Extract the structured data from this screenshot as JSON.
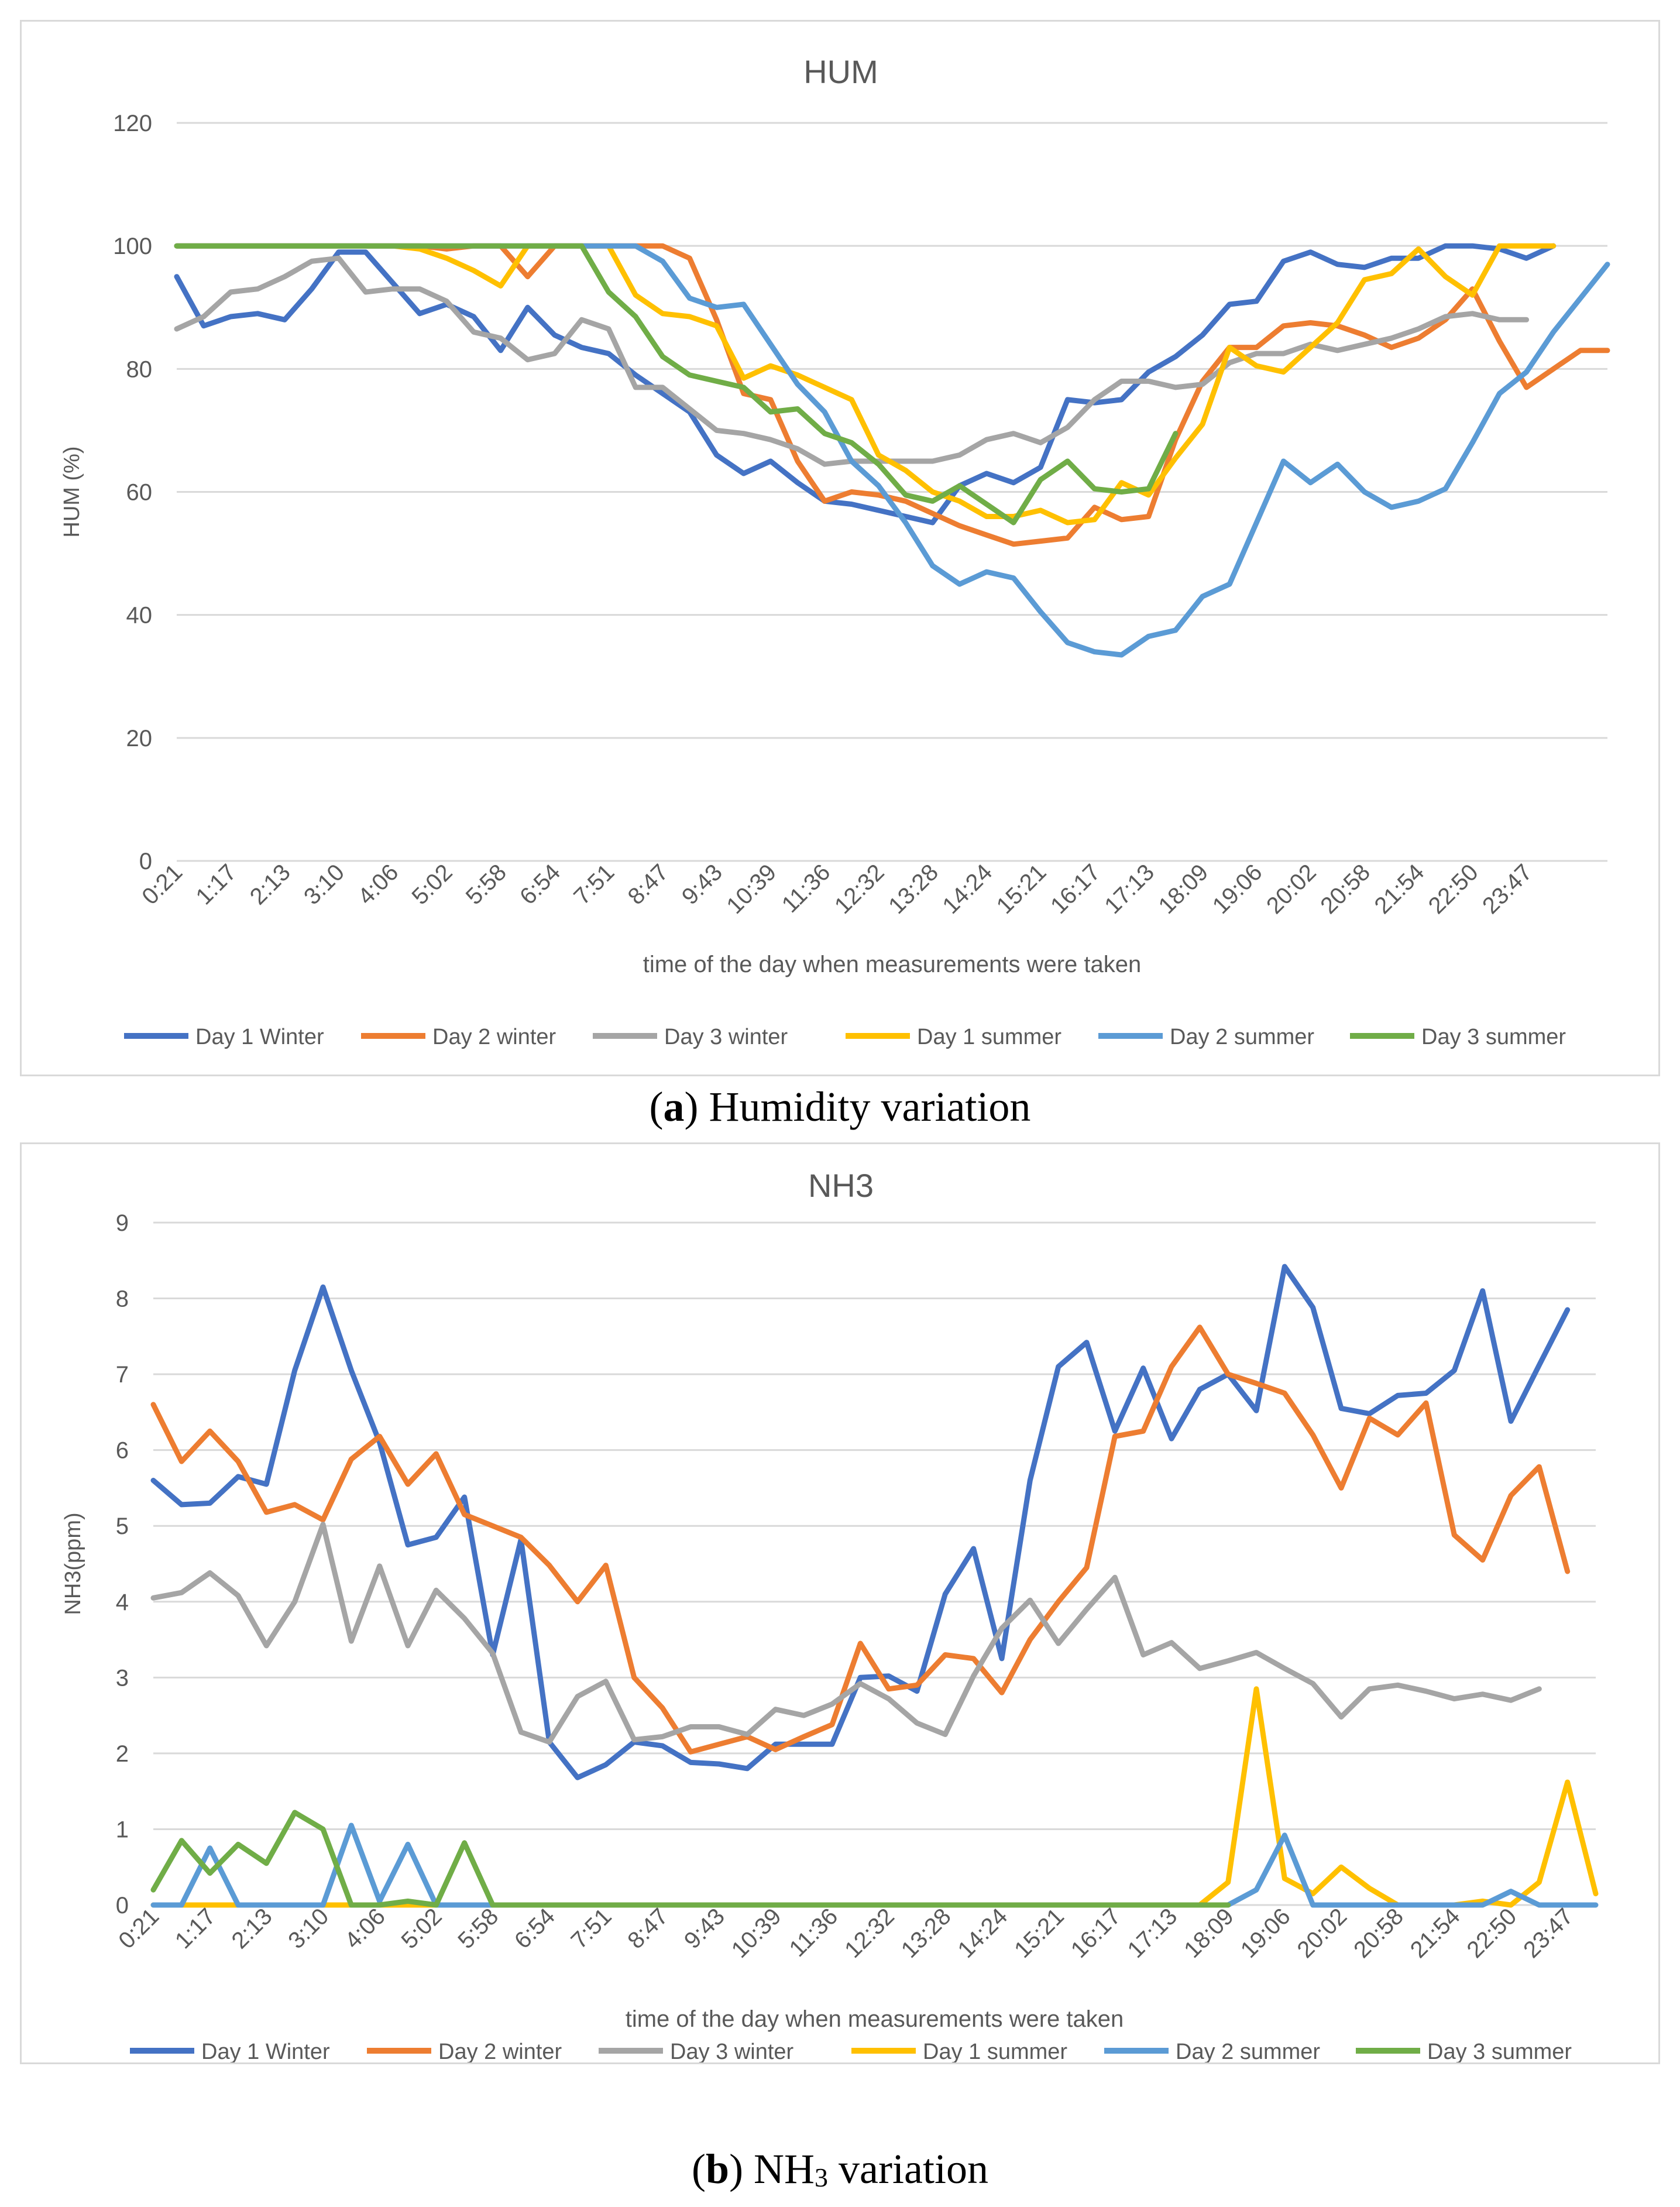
{
  "chart_data": [
    {
      "type": "line",
      "title": "HUM",
      "xlabel": "time of the day when measurements were taken",
      "ylabel": "HUM (%)",
      "ylim": [
        0,
        120
      ],
      "yticks": [
        0,
        20,
        40,
        60,
        80,
        100,
        120
      ],
      "grid": true,
      "legend_position": "bottom",
      "x_tick_labels": [
        "0:21",
        "1:17",
        "2:13",
        "3:10",
        "4:06",
        "5:02",
        "5:58",
        "6:54",
        "7:51",
        "8:47",
        "9:43",
        "10:39",
        "11:36",
        "12:32",
        "13:28",
        "14:24",
        "15:21",
        "16:17",
        "17:13",
        "18:09",
        "19:06",
        "20:02",
        "20:58",
        "21:54",
        "22:50",
        "23:47"
      ],
      "series": [
        {
          "name": "Day 1 Winter",
          "color": "#4472c4",
          "values": [
            95,
            87,
            88.5,
            89,
            88,
            93,
            99,
            99,
            94,
            89,
            90.5,
            88.5,
            83,
            90,
            85.5,
            83.5,
            82.5,
            79,
            76,
            73,
            66,
            63,
            65,
            61.5,
            58.5,
            58,
            57,
            56,
            55,
            61,
            63,
            61.5,
            64,
            75,
            74.5,
            75,
            79.5,
            82,
            85.5,
            90.5,
            91,
            97.5,
            99,
            97,
            96.5,
            98,
            98,
            100,
            100,
            99.5,
            98,
            100,
            null
          ]
        },
        {
          "name": "Day 2 winter",
          "color": "#ed7d31",
          "values": [
            100,
            100,
            100,
            100,
            100,
            100,
            100,
            100,
            100,
            100,
            99.5,
            100,
            100,
            95,
            100,
            100,
            100,
            100,
            100,
            98,
            88,
            76,
            75,
            65,
            58.5,
            60,
            59.5,
            58.5,
            56.5,
            54.5,
            53,
            51.5,
            52,
            52.5,
            57.5,
            55.5,
            56,
            68.5,
            78,
            83.5,
            83.5,
            87,
            87.5,
            87,
            85.5,
            83.5,
            85,
            88,
            93,
            84.5,
            77,
            80,
            83,
            83
          ]
        },
        {
          "name": "Day 3 winter",
          "color": "#a5a5a5",
          "values": [
            86.5,
            88.5,
            92.5,
            93,
            95,
            97.5,
            98,
            92.5,
            93,
            93,
            91,
            86,
            85,
            81.5,
            82.5,
            88,
            86.5,
            77,
            77,
            73.5,
            70,
            69.5,
            68.5,
            67,
            64.5,
            65,
            65,
            65,
            65,
            66,
            68.5,
            69.5,
            68,
            70.5,
            75,
            78,
            78,
            77,
            77.5,
            81,
            82.5,
            82.5,
            84,
            83,
            84,
            85,
            86.5,
            88.5,
            89,
            88,
            88,
            null
          ]
        },
        {
          "name": "Day 1 summer",
          "color": "#ffc000",
          "values": [
            100,
            100,
            100,
            100,
            100,
            100,
            100,
            100,
            100,
            99.5,
            98,
            96,
            93.5,
            100,
            100,
            100,
            100,
            92,
            89,
            88.5,
            87,
            78.5,
            80.5,
            79,
            77,
            75,
            66,
            63.5,
            60,
            58.5,
            56,
            56,
            57,
            55,
            55.5,
            61.5,
            59.5,
            65.5,
            71,
            83.5,
            80.5,
            79.5,
            83.5,
            87.5,
            94.5,
            95.5,
            99.5,
            95,
            92,
            100,
            100,
            100
          ]
        },
        {
          "name": "Day 2 summer",
          "color": "#5b9bd5",
          "values": [
            100,
            100,
            100,
            100,
            100,
            100,
            100,
            100,
            100,
            100,
            100,
            100,
            100,
            100,
            100,
            100,
            100,
            100,
            97.5,
            91.5,
            90,
            90.5,
            84,
            77.5,
            73,
            65,
            61,
            55,
            48,
            45,
            47,
            46,
            40.5,
            35.5,
            34,
            33.5,
            36.5,
            37.5,
            43,
            45,
            55,
            65,
            61.5,
            64.5,
            60,
            57.5,
            58.5,
            60.5,
            68,
            76,
            79.5,
            86,
            91.5,
            97
          ]
        },
        {
          "name": "Day 3 summer",
          "color": "#70ad47",
          "values": [
            100,
            100,
            100,
            100,
            100,
            100,
            100,
            100,
            100,
            100,
            100,
            100,
            100,
            100,
            100,
            100,
            92.5,
            88.5,
            82,
            79,
            78,
            77,
            73,
            73.5,
            69.5,
            68,
            64.5,
            59.5,
            58.5,
            61,
            58,
            55,
            62,
            65,
            60.5,
            60,
            60.5,
            69.5
          ]
        }
      ]
    },
    {
      "type": "line",
      "title": "NH3",
      "xlabel": "time of the day when measurements were taken",
      "ylabel": "NH3(ppm)",
      "ylim": [
        0,
        9
      ],
      "yticks": [
        0,
        1,
        2,
        3,
        4,
        5,
        6,
        7,
        8,
        9
      ],
      "grid": true,
      "legend_position": "bottom",
      "x_tick_labels": [
        "0:21",
        "1:17",
        "2:13",
        "3:10",
        "4:06",
        "5:02",
        "5:58",
        "6:54",
        "7:51",
        "8:47",
        "9:43",
        "10:39",
        "11:36",
        "12:32",
        "13:28",
        "14:24",
        "15:21",
        "16:17",
        "17:13",
        "18:09",
        "19:06",
        "20:02",
        "20:58",
        "21:54",
        "22:50",
        "23:47"
      ],
      "series": [
        {
          "name": "Day 1 Winter",
          "color": "#4472c4",
          "values": [
            5.6,
            5.28,
            5.3,
            5.65,
            5.55,
            7.05,
            8.15,
            7.05,
            6.1,
            4.75,
            4.85,
            5.38,
            3.3,
            4.82,
            2.15,
            1.68,
            1.85,
            2.15,
            2.1,
            1.88,
            1.86,
            1.8,
            2.12,
            2.12,
            2.12,
            3,
            3.02,
            2.82,
            4.1,
            4.7,
            3.25,
            5.6,
            7.1,
            7.42,
            6.25,
            7.08,
            6.15,
            6.8,
            7,
            6.52,
            8.42,
            7.88,
            6.55,
            6.48,
            6.72,
            6.75,
            7.05,
            8.1,
            6.38,
            7.12,
            7.85
          ]
        },
        {
          "name": "Day 2 winter",
          "color": "#ed7d31",
          "values": [
            6.6,
            5.85,
            6.25,
            5.85,
            5.18,
            5.28,
            5.08,
            5.88,
            6.18,
            5.55,
            5.95,
            5.15,
            5,
            4.85,
            4.48,
            4,
            4.48,
            3,
            2.6,
            2.02,
            2.12,
            2.22,
            2.05,
            2.22,
            2.38,
            3.45,
            2.85,
            2.9,
            3.3,
            3.25,
            2.8,
            3.5,
            4,
            4.45,
            6.18,
            6.25,
            7.1,
            7.62,
            7,
            6.88,
            6.75,
            6.2,
            5.5,
            6.42,
            6.2,
            6.62,
            4.88,
            4.55,
            5.4,
            5.78,
            4.4
          ]
        },
        {
          "name": "Day 3 winter",
          "color": "#a5a5a5",
          "values": [
            4.05,
            4.12,
            4.38,
            4.08,
            3.42,
            4,
            5.02,
            3.48,
            4.47,
            3.42,
            4.15,
            3.78,
            3.32,
            2.28,
            2.15,
            2.75,
            2.95,
            2.18,
            2.22,
            2.35,
            2.35,
            2.25,
            2.58,
            2.5,
            2.65,
            2.92,
            2.72,
            2.4,
            2.25,
            3.02,
            3.65,
            4.02,
            3.45,
            3.9,
            4.32,
            3.3,
            3.46,
            3.12,
            3.22,
            3.33,
            3.12,
            2.92,
            2.48,
            2.85,
            2.9,
            2.82,
            2.72,
            2.78,
            2.7,
            2.85
          ]
        },
        {
          "name": "Day 1 summer",
          "color": "#ffc000",
          "values": [
            0,
            0,
            0,
            0,
            0,
            0,
            0,
            0,
            0,
            0,
            0,
            0,
            0,
            0,
            0,
            0,
            0,
            0,
            0,
            0,
            0,
            0,
            0,
            0,
            0,
            0,
            0,
            0,
            0,
            0,
            0,
            0,
            0,
            0,
            0,
            0,
            0,
            0,
            0.3,
            2.85,
            0.35,
            0.15,
            0.5,
            0.22,
            0,
            0,
            0,
            0.05,
            0,
            0.3,
            1.62,
            0.15
          ]
        },
        {
          "name": "Day 2 summer",
          "color": "#5b9bd5",
          "values": [
            0,
            0,
            0.75,
            0,
            0,
            0,
            0,
            1.05,
            0.05,
            0.8,
            0,
            0,
            0,
            0,
            0,
            0,
            0,
            0,
            0,
            0,
            0,
            0,
            0,
            0,
            0,
            0,
            0,
            0,
            0,
            0,
            0,
            0,
            0,
            0,
            0,
            0,
            0,
            0,
            0,
            0.2,
            0.92,
            0,
            0,
            0,
            0,
            0,
            0,
            0,
            0.18,
            0,
            0,
            0
          ]
        },
        {
          "name": "Day 3 summer",
          "color": "#70ad47",
          "values": [
            0.2,
            0.85,
            0.42,
            0.8,
            0.55,
            1.22,
            1,
            0,
            0,
            0.05,
            0,
            0.82,
            0,
            0,
            0,
            0,
            0,
            0,
            0,
            0,
            0,
            0,
            0,
            0,
            0,
            0,
            0,
            0,
            0,
            0,
            0,
            0,
            0,
            0,
            0,
            0,
            0,
            0,
            0
          ]
        }
      ]
    }
  ],
  "captions": {
    "a_letter": "a",
    "a_text": " Humidity variation",
    "b_letter": "b",
    "b_prefix": " NH",
    "b_sub": "3",
    "b_suffix": " variation"
  }
}
